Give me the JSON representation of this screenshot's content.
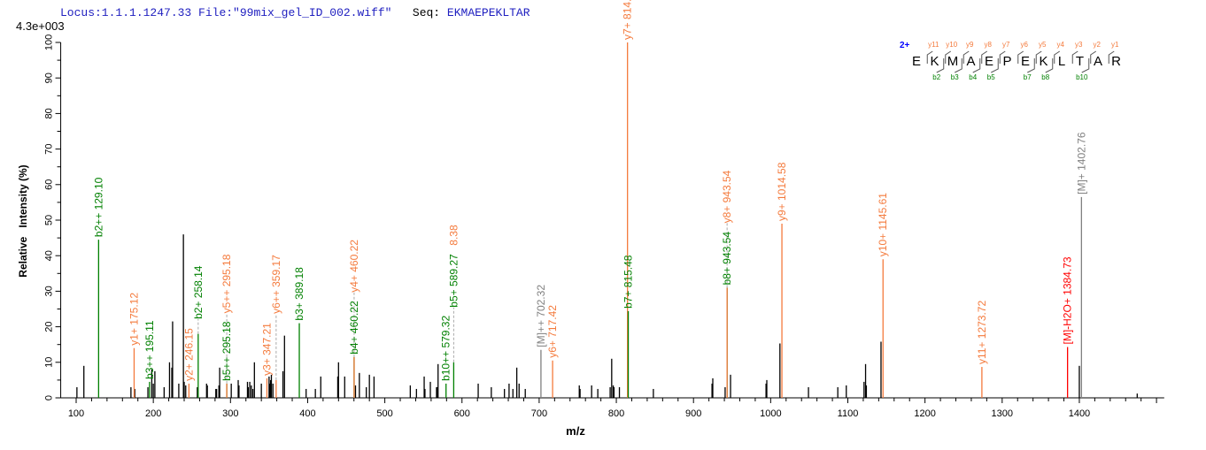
{
  "header": {
    "locus": "Locus:1.1.1.1247.33",
    "file": "File:\"99mix_gel_ID_002.wiff\"",
    "seq_label": "Seq:",
    "seq": "EKMAEPEKLTAR"
  },
  "scale_label": "4.3e+003",
  "colors": {
    "y_ion": "#f47a3c",
    "b_ion": "#008000",
    "precursor": "#808080",
    "water_loss": "#ff0000",
    "unassigned": "#000000",
    "charge": "#0000ff"
  },
  "sequence_diagram": {
    "charge": "2+",
    "residues": [
      "E",
      "K",
      "M",
      "A",
      "E",
      "P",
      "E",
      "K",
      "L",
      "T",
      "A",
      "R"
    ],
    "y_labels": [
      "y11",
      "y10",
      "y9",
      "y8",
      "y7",
      "y6",
      "y5",
      "y4",
      "y3",
      "y2",
      "y1"
    ],
    "b_labels": [
      {
        "after": 2,
        "label": "b2"
      },
      {
        "after": 3,
        "label": "b3"
      },
      {
        "after": 4,
        "label": "b4"
      },
      {
        "after": 5,
        "label": "b5"
      },
      {
        "after": 7,
        "label": "b7"
      },
      {
        "after": 8,
        "label": "b8"
      },
      {
        "after": 10,
        "label": "b10"
      }
    ]
  },
  "chart_data": {
    "type": "bar",
    "xlabel": "m/z",
    "ylabel": "Relative   Intensity (%)",
    "xlim": [
      80,
      1510
    ],
    "ylim": [
      0,
      100
    ],
    "xticks": [
      100,
      200,
      300,
      400,
      500,
      600,
      700,
      800,
      900,
      1000,
      1100,
      1200,
      1300,
      1400
    ],
    "yticks": [
      0,
      10,
      20,
      30,
      40,
      50,
      60,
      70,
      80,
      90,
      100
    ],
    "grid": false,
    "annotated_peaks": [
      {
        "mz": 129.1,
        "intensity": 44.5,
        "type": "b_ion",
        "label": "b2++ 129.10"
      },
      {
        "mz": 175.12,
        "intensity": 14,
        "type": "y_ion",
        "label": "y1+ 175.12"
      },
      {
        "mz": 195.11,
        "intensity": 4.5,
        "type": "b_ion",
        "label": "b3++ 195.11"
      },
      {
        "mz": 246.15,
        "intensity": 4,
        "type": "y_ion",
        "label": "y2+ 246.15"
      },
      {
        "mz": 258.14,
        "intensity": 18,
        "type": "b_ion",
        "label": "b2+ 258.14"
      },
      {
        "mz": 295.18,
        "intensity": 4,
        "type": "b_ion",
        "label": "b5++ 295.18"
      },
      {
        "mz": 295.18,
        "intensity": 4,
        "type": "y_ion",
        "label": "y5++ 295.18"
      },
      {
        "mz": 347.21,
        "intensity": 5.5,
        "type": "y_ion",
        "label": "y3+ 347.21"
      },
      {
        "mz": 359.17,
        "intensity": 5,
        "type": "y_ion",
        "label": "y6++ 359.17"
      },
      {
        "mz": 389.18,
        "intensity": 21,
        "type": "b_ion",
        "label": "b3+ 389.18"
      },
      {
        "mz": 460.22,
        "intensity": 11.5,
        "type": "b_ion",
        "label": "b4+ 460.22"
      },
      {
        "mz": 460.22,
        "intensity": 11.5,
        "type": "y_ion",
        "label": "y4+ 460.22"
      },
      {
        "mz": 579.32,
        "intensity": 4,
        "type": "b_ion",
        "label": "b10++ 579.32"
      },
      {
        "mz": 589.27,
        "intensity": 10,
        "type": "b_ion",
        "label": "b5+ 589.27"
      },
      {
        "mz": 589.27,
        "intensity": 10,
        "type": "y_ion",
        "label": "8.38",
        "no_line": true
      },
      {
        "mz": 702.32,
        "intensity": 13.5,
        "type": "precursor",
        "label": "[M]++ 702.32"
      },
      {
        "mz": 717.42,
        "intensity": 10.5,
        "type": "y_ion",
        "label": "y6+ 717.42"
      },
      {
        "mz": 814.48,
        "intensity": 100,
        "type": "y_ion",
        "label": "y7+ 814.48"
      },
      {
        "mz": 815.48,
        "intensity": 24.4,
        "type": "b_ion",
        "label": "b7+ 815.48"
      },
      {
        "mz": 943.54,
        "intensity": 31,
        "type": "b_ion",
        "label": "b8+ 943.54"
      },
      {
        "mz": 943.54,
        "intensity": 31,
        "type": "y_ion",
        "label": "y8+ 943.54"
      },
      {
        "mz": 1014.58,
        "intensity": 49,
        "type": "y_ion",
        "label": "y9+ 1014.58"
      },
      {
        "mz": 1145.61,
        "intensity": 39,
        "type": "y_ion",
        "label": "y10+ 1145.61"
      },
      {
        "mz": 1273.72,
        "intensity": 8.7,
        "type": "y_ion",
        "label": "y11+ 1273.72"
      },
      {
        "mz": 1384.73,
        "intensity": 14.3,
        "type": "water_loss",
        "label": "[M]-H2O+ 1384.73"
      },
      {
        "mz": 1402.76,
        "intensity": 56.5,
        "type": "precursor",
        "label": "[M]+ 1402.76"
      }
    ],
    "unassigned_peaks": [
      [
        101,
        3
      ],
      [
        110,
        9
      ],
      [
        171,
        3
      ],
      [
        176,
        2.5
      ],
      [
        193,
        3
      ],
      [
        198,
        8
      ],
      [
        200,
        4
      ],
      [
        202,
        7.5
      ],
      [
        214,
        3
      ],
      [
        221,
        10
      ],
      [
        224,
        8.5
      ],
      [
        225,
        21.5
      ],
      [
        233,
        4
      ],
      [
        239,
        46
      ],
      [
        240,
        4.5
      ],
      [
        242,
        3.5
      ],
      [
        257,
        3
      ],
      [
        269,
        4
      ],
      [
        270,
        3.5
      ],
      [
        281,
        2.5
      ],
      [
        282,
        2.5
      ],
      [
        285,
        3.5
      ],
      [
        286,
        8.5
      ],
      [
        301,
        4
      ],
      [
        310,
        5
      ],
      [
        311,
        3.5
      ],
      [
        322,
        4.5
      ],
      [
        323,
        3
      ],
      [
        325,
        4.5
      ],
      [
        327,
        3.5
      ],
      [
        329,
        2.5
      ],
      [
        331,
        10
      ],
      [
        340,
        4
      ],
      [
        350,
        6
      ],
      [
        351,
        4
      ],
      [
        352,
        5
      ],
      [
        353,
        6.5
      ],
      [
        355,
        4
      ],
      [
        368,
        7.5
      ],
      [
        370,
        17.5
      ],
      [
        398,
        2.5
      ],
      [
        410,
        2.5
      ],
      [
        417,
        6
      ],
      [
        439,
        6
      ],
      [
        440,
        10
      ],
      [
        448,
        6
      ],
      [
        462,
        3.5
      ],
      [
        467,
        7
      ],
      [
        476,
        3
      ],
      [
        480,
        6.5
      ],
      [
        486,
        6
      ],
      [
        533,
        3.5
      ],
      [
        541,
        2.5
      ],
      [
        551,
        6
      ],
      [
        552,
        2.5
      ],
      [
        559,
        4.5
      ],
      [
        567,
        3
      ],
      [
        568,
        3
      ],
      [
        569,
        9.5
      ],
      [
        621,
        4
      ],
      [
        638,
        3
      ],
      [
        655,
        2.5
      ],
      [
        661,
        4
      ],
      [
        666,
        2.5
      ],
      [
        671,
        8.5
      ],
      [
        674,
        4
      ],
      [
        682,
        2.5
      ],
      [
        752,
        3.5
      ],
      [
        753,
        2.5
      ],
      [
        768,
        3.5
      ],
      [
        776,
        2.5
      ],
      [
        792,
        3
      ],
      [
        794,
        11
      ],
      [
        796,
        3.5
      ],
      [
        797,
        3
      ],
      [
        804,
        3
      ],
      [
        848,
        2.5
      ],
      [
        924,
        4
      ],
      [
        925,
        5.5
      ],
      [
        941,
        3
      ],
      [
        948,
        6.5
      ],
      [
        994,
        4
      ],
      [
        995,
        5
      ],
      [
        1012,
        15.3
      ],
      [
        1049,
        3
      ],
      [
        1087,
        3
      ],
      [
        1098,
        3.5
      ],
      [
        1121,
        4.5
      ],
      [
        1123,
        9.5
      ],
      [
        1124,
        3.5
      ],
      [
        1143,
        15.8
      ],
      [
        1400,
        9
      ],
      [
        1475,
        1.2
      ]
    ]
  }
}
